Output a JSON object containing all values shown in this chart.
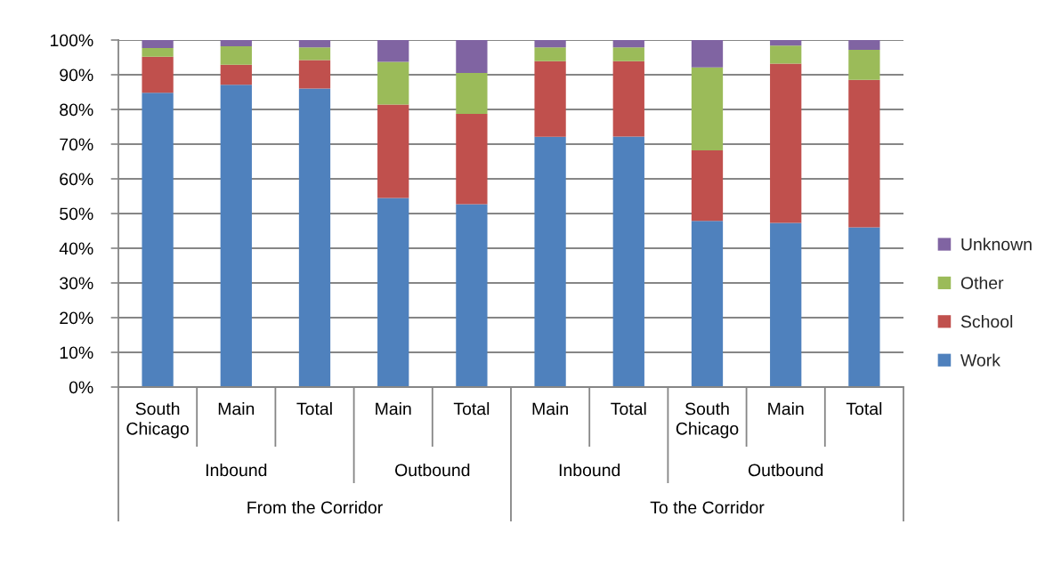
{
  "chart_data": {
    "type": "bar",
    "stacked": true,
    "categories": [
      "South Chicago",
      "Main",
      "Total",
      "Main",
      "Total",
      "Main",
      "Total",
      "South Chicago",
      "Main",
      "Total"
    ],
    "series": [
      {
        "name": "Work",
        "color": "#4f81bd",
        "values": [
          84.8,
          87.1,
          86.0,
          54.5,
          52.7,
          72.1,
          72.2,
          47.9,
          47.3,
          46.0
        ]
      },
      {
        "name": "School",
        "color": "#c0504d",
        "values": [
          10.4,
          5.8,
          8.2,
          26.9,
          26.0,
          21.8,
          21.7,
          20.3,
          45.9,
          42.5
        ]
      },
      {
        "name": "Other",
        "color": "#9bbb59",
        "values": [
          2.5,
          5.3,
          3.7,
          12.3,
          11.8,
          4.0,
          4.0,
          23.9,
          5.2,
          8.7
        ]
      },
      {
        "name": "Unknown",
        "color": "#8064a2",
        "values": [
          2.3,
          1.8,
          2.1,
          6.3,
          9.5,
          2.1,
          2.1,
          7.9,
          1.6,
          2.8
        ]
      }
    ],
    "ylim": [
      0,
      100
    ],
    "yticks": [
      {
        "value": 0,
        "label": "0%"
      },
      {
        "value": 10,
        "label": "10%"
      },
      {
        "value": 20,
        "label": "20%"
      },
      {
        "value": 30,
        "label": "30%"
      },
      {
        "value": 40,
        "label": "40%"
      },
      {
        "value": 50,
        "label": "50%"
      },
      {
        "value": 60,
        "label": "60%"
      },
      {
        "value": 70,
        "label": "70%"
      },
      {
        "value": 80,
        "label": "80%"
      },
      {
        "value": 90,
        "label": "90%"
      },
      {
        "value": 100,
        "label": "100%"
      }
    ],
    "grid": "y",
    "legend": "right",
    "annotations": [
      "Inbound",
      "Outbound",
      "Inbound",
      "Outbound",
      "From the Corridor",
      "To the Corridor"
    ]
  }
}
